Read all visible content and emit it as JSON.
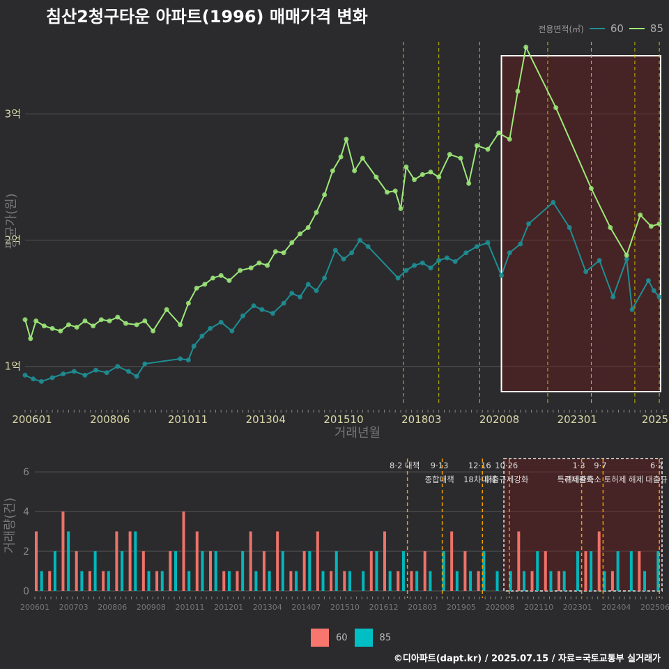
{
  "title": "침산2청구타운 아파트(1996) 매매가격 변화",
  "footer": "©디아파트(dapt.kr) / 2025.07.15 / 자료=국토교통부 실거래가",
  "legend_top": {
    "title": "전용면적(㎡)",
    "items": [
      {
        "name": "60",
        "color": "#1e8f95"
      },
      {
        "name": "85",
        "color": "#9ee87a"
      }
    ]
  },
  "legend_bottom": {
    "items": [
      {
        "name": "60",
        "color": "#f8766d"
      },
      {
        "name": "85",
        "color": "#00bfc4"
      }
    ]
  },
  "chart_data": [
    {
      "type": "line",
      "xlabel": "거래년월",
      "ylabel": "평균가(원)",
      "x_range": [
        "2006-01",
        "2025-07"
      ],
      "y_range_won": [
        70000000,
        360000000
      ],
      "y_ticks": [
        {
          "value": 100000000,
          "label": "1억"
        },
        {
          "value": 200000000,
          "label": "2억"
        },
        {
          "value": 300000000,
          "label": "3억"
        }
      ],
      "x_ticks": [
        "200601",
        "200806",
        "201011",
        "201304",
        "201510",
        "201803",
        "202008",
        "202301",
        "2025"
      ],
      "policy_dates": [
        "2017-08",
        "2018-09",
        "2019-12",
        "2022-01",
        "2023-05",
        "2024-09",
        "2025-06"
      ],
      "highlight_range": [
        "2020-08",
        "2025-07"
      ],
      "series": [
        {
          "name": "60",
          "points": [
            [
              "2006-01",
              93000000
            ],
            [
              "2006-04",
              90000000
            ],
            [
              "2006-07",
              88000000
            ],
            [
              "2006-11",
              91000000
            ],
            [
              "2007-03",
              94000000
            ],
            [
              "2007-07",
              96000000
            ],
            [
              "2007-11",
              93000000
            ],
            [
              "2008-03",
              97000000
            ],
            [
              "2008-07",
              95000000
            ],
            [
              "2008-11",
              100000000
            ],
            [
              "2009-03",
              96000000
            ],
            [
              "2009-06",
              92000000
            ],
            [
              "2009-09",
              102000000
            ],
            [
              "2010-10",
              106000000
            ],
            [
              "2011-01",
              105000000
            ],
            [
              "2011-03",
              116000000
            ],
            [
              "2011-06",
              124000000
            ],
            [
              "2011-09",
              130000000
            ],
            [
              "2012-01",
              135000000
            ],
            [
              "2012-05",
              128000000
            ],
            [
              "2012-09",
              140000000
            ],
            [
              "2013-01",
              148000000
            ],
            [
              "2013-04",
              145000000
            ],
            [
              "2013-08",
              142000000
            ],
            [
              "2013-12",
              150000000
            ],
            [
              "2014-03",
              158000000
            ],
            [
              "2014-06",
              155000000
            ],
            [
              "2014-09",
              165000000
            ],
            [
              "2014-12",
              160000000
            ],
            [
              "2015-03",
              170000000
            ],
            [
              "2015-07",
              192000000
            ],
            [
              "2015-10",
              185000000
            ],
            [
              "2016-01",
              190000000
            ],
            [
              "2016-04",
              200000000
            ],
            [
              "2016-07",
              195000000
            ],
            [
              "2017-06",
              170000000
            ],
            [
              "2017-09",
              176000000
            ],
            [
              "2017-12",
              180000000
            ],
            [
              "2018-03",
              182000000
            ],
            [
              "2018-06",
              178000000
            ],
            [
              "2018-09",
              184000000
            ],
            [
              "2018-12",
              186000000
            ],
            [
              "2019-03",
              183000000
            ],
            [
              "2019-07",
              190000000
            ],
            [
              "2019-11",
              195000000
            ],
            [
              "2020-03",
              198000000
            ],
            [
              "2020-08",
              172000000
            ],
            [
              "2020-11",
              190000000
            ],
            [
              "2021-03",
              197000000
            ],
            [
              "2021-06",
              213000000
            ],
            [
              "2022-03",
              230000000
            ],
            [
              "2022-09",
              210000000
            ],
            [
              "2023-03",
              175000000
            ],
            [
              "2023-08",
              184000000
            ],
            [
              "2024-01",
              155000000
            ],
            [
              "2024-06",
              185000000
            ],
            [
              "2024-08",
              145000000
            ],
            [
              "2025-02",
              168000000
            ],
            [
              "2025-04",
              160000000
            ],
            [
              "2025-06",
              155000000
            ]
          ]
        },
        {
          "name": "85",
          "points": [
            [
              "2006-01",
              137000000
            ],
            [
              "2006-03",
              122000000
            ],
            [
              "2006-05",
              136000000
            ],
            [
              "2006-08",
              132000000
            ],
            [
              "2006-11",
              130000000
            ],
            [
              "2007-02",
              128000000
            ],
            [
              "2007-05",
              133000000
            ],
            [
              "2007-08",
              131000000
            ],
            [
              "2007-11",
              136000000
            ],
            [
              "2008-02",
              132000000
            ],
            [
              "2008-05",
              137000000
            ],
            [
              "2008-08",
              136000000
            ],
            [
              "2008-11",
              139000000
            ],
            [
              "2009-02",
              134000000
            ],
            [
              "2009-06",
              133000000
            ],
            [
              "2009-09",
              136000000
            ],
            [
              "2009-12",
              128000000
            ],
            [
              "2010-05",
              145000000
            ],
            [
              "2010-10",
              133000000
            ],
            [
              "2011-01",
              150000000
            ],
            [
              "2011-04",
              162000000
            ],
            [
              "2011-07",
              165000000
            ],
            [
              "2011-10",
              170000000
            ],
            [
              "2012-01",
              172000000
            ],
            [
              "2012-04",
              168000000
            ],
            [
              "2012-08",
              176000000
            ],
            [
              "2012-12",
              178000000
            ],
            [
              "2013-03",
              182000000
            ],
            [
              "2013-06",
              180000000
            ],
            [
              "2013-09",
              191000000
            ],
            [
              "2013-12",
              190000000
            ],
            [
              "2014-03",
              198000000
            ],
            [
              "2014-06",
              205000000
            ],
            [
              "2014-09",
              210000000
            ],
            [
              "2014-12",
              222000000
            ],
            [
              "2015-03",
              236000000
            ],
            [
              "2015-06",
              255000000
            ],
            [
              "2015-09",
              266000000
            ],
            [
              "2015-11",
              280000000
            ],
            [
              "2016-02",
              255000000
            ],
            [
              "2016-05",
              265000000
            ],
            [
              "2016-10",
              250000000
            ],
            [
              "2017-02",
              238000000
            ],
            [
              "2017-05",
              239000000
            ],
            [
              "2017-07",
              225000000
            ],
            [
              "2017-09",
              258000000
            ],
            [
              "2017-12",
              248000000
            ],
            [
              "2018-03",
              252000000
            ],
            [
              "2018-06",
              254000000
            ],
            [
              "2018-09",
              250000000
            ],
            [
              "2019-01",
              268000000
            ],
            [
              "2019-05",
              265000000
            ],
            [
              "2019-08",
              245000000
            ],
            [
              "2019-11",
              275000000
            ],
            [
              "2020-03",
              272000000
            ],
            [
              "2020-07",
              285000000
            ],
            [
              "2020-11",
              280000000
            ],
            [
              "2021-02",
              318000000
            ],
            [
              "2021-05",
              353000000
            ],
            [
              "2022-04",
              305000000
            ],
            [
              "2023-05",
              241000000
            ],
            [
              "2023-12",
              210000000
            ],
            [
              "2024-06",
              188000000
            ],
            [
              "2024-11",
              220000000
            ],
            [
              "2025-03",
              211000000
            ],
            [
              "2025-06",
              213000000
            ]
          ]
        }
      ]
    },
    {
      "type": "bar",
      "xlabel": "",
      "ylabel": "거래량(건)",
      "y_range": [
        0,
        6.6
      ],
      "y_ticks": [
        0,
        2,
        4,
        6
      ],
      "x_ticks": [
        "200601",
        "200703",
        "200806",
        "200908",
        "201011",
        "201201",
        "201304",
        "201407",
        "201510",
        "201612",
        "201803",
        "201905",
        "202008",
        "202110",
        "202301",
        "202404",
        "202506"
      ],
      "highlight_range": [
        "2020-08",
        "2025-07"
      ],
      "annotations": [
        {
          "date": "2017-08",
          "line1": "8·2 대책",
          "line2": ""
        },
        {
          "date": "2018-09",
          "line1": "9·13",
          "line2": "종합대책"
        },
        {
          "date": "2019-12",
          "line1": "12·16",
          "line2": "18차대책"
        },
        {
          "date": "2020-10",
          "line1": "10·26",
          "line2": "대출규제강화"
        },
        {
          "date": "2023-01",
          "line1": "1·3",
          "line2": "규제완화"
        },
        {
          "date": "2023-09",
          "line1": "9·7",
          "line2": "특례대출축소 토허제 해제"
        },
        {
          "date": "2025-06",
          "line1": "6·2",
          "line2": "대출규"
        }
      ],
      "series": [
        {
          "name": "60",
          "color": "#f8766d",
          "stride": 5,
          "values": [
            3,
            1,
            4,
            2,
            1,
            1,
            3,
            3,
            2,
            1,
            2,
            4,
            3,
            2,
            1,
            1,
            3,
            2,
            3,
            1,
            2,
            3,
            1,
            1,
            0,
            2,
            3,
            1,
            1,
            2,
            0,
            3,
            2,
            1,
            0,
            0,
            3,
            1,
            2,
            1,
            0,
            2,
            3,
            1,
            0,
            2,
            0,
            0,
            1,
            0,
            3,
            2,
            0,
            1,
            4,
            1,
            3,
            2,
            1,
            4,
            4,
            3,
            2,
            2,
            3,
            4,
            4,
            3,
            6,
            2,
            3,
            1,
            2,
            3,
            4,
            3,
            2,
            1,
            3,
            1,
            2,
            3,
            1,
            2,
            4,
            3,
            2,
            1,
            2,
            1,
            3,
            4,
            2,
            3,
            2,
            3,
            4,
            1,
            3,
            3,
            2,
            1,
            2,
            2,
            4,
            4,
            2,
            3,
            1,
            1,
            2,
            3,
            1,
            1,
            2,
            4,
            3,
            3,
            6,
            3,
            4,
            4,
            4,
            2,
            2,
            3,
            1,
            2,
            2,
            1,
            2,
            2,
            1,
            2,
            2,
            2,
            2,
            2,
            1,
            1,
            0,
            0,
            0,
            0,
            0
          ]
        },
        {
          "name": "85",
          "color": "#00bfc4",
          "stride": 5,
          "values": [
            1,
            2,
            3,
            1,
            2,
            1,
            2,
            3,
            1,
            1,
            2,
            1,
            2,
            2,
            1,
            2,
            1,
            1,
            2,
            1,
            2,
            1,
            2,
            1,
            1,
            2,
            1,
            2,
            1,
            1,
            2,
            1,
            1,
            2,
            1,
            1,
            1,
            2,
            1,
            1,
            2,
            2,
            1,
            2,
            2,
            1,
            2,
            1,
            1,
            1,
            1,
            2,
            2,
            2,
            1,
            1,
            2,
            1,
            1,
            2,
            1,
            1,
            2,
            2,
            1,
            1,
            2,
            1,
            1,
            1,
            2,
            1,
            1,
            1,
            2,
            1,
            1,
            2,
            1,
            1,
            1,
            2,
            1,
            1,
            1,
            1,
            2,
            1,
            2,
            1,
            1,
            1,
            2,
            2,
            1,
            2,
            1,
            1,
            2,
            1,
            1,
            2,
            2,
            2,
            1,
            1,
            1,
            1,
            1,
            2,
            1,
            1,
            2,
            2,
            2,
            1,
            1,
            1,
            2,
            1,
            2,
            2,
            2,
            2,
            1,
            1,
            1,
            1,
            1,
            1,
            1,
            1,
            2,
            1,
            1,
            0,
            0,
            0,
            0,
            0,
            0,
            0,
            0,
            0,
            0
          ]
        }
      ]
    }
  ]
}
